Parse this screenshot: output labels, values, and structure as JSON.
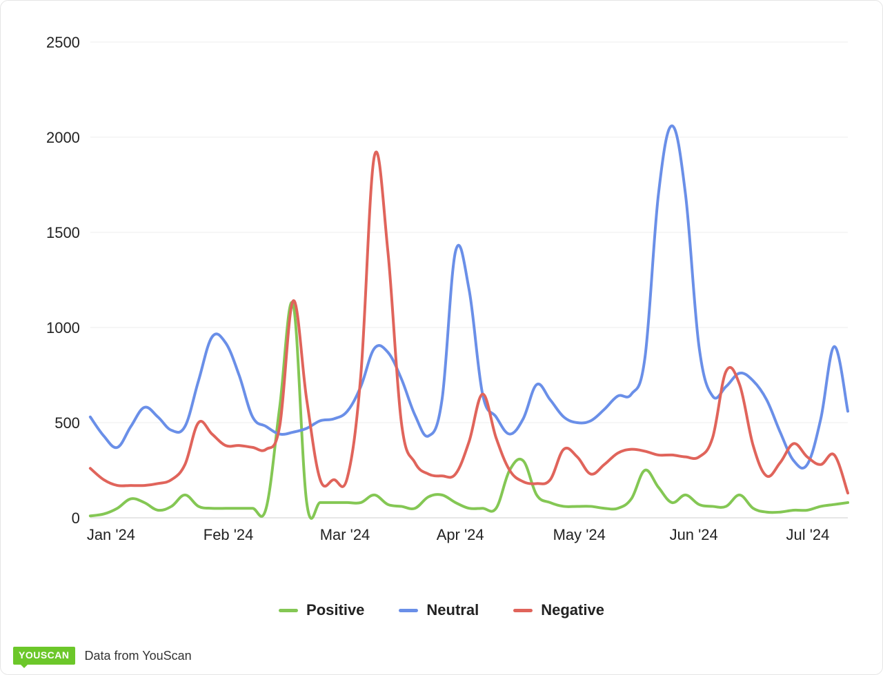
{
  "chart": {
    "type": "line",
    "background_color": "#ffffff",
    "grid_color": "#eeeeee",
    "baseline_color": "#cccccc",
    "line_width": 4,
    "ylim": [
      0,
      2500
    ],
    "ytick_step": 500,
    "yticks": [
      0,
      500,
      1000,
      1500,
      2000,
      2500
    ],
    "xtick_labels": [
      "Jan '24",
      "Feb '24",
      "Mar '24",
      "Apr '24",
      "May '24",
      "Jun '24",
      "Jul '24"
    ],
    "label_fontsize": 22,
    "n_points": 57,
    "series": [
      {
        "name": "Positive",
        "color": "#84c754",
        "values": [
          10,
          20,
          50,
          100,
          80,
          40,
          60,
          120,
          60,
          50,
          50,
          50,
          50,
          50,
          580,
          1120,
          80,
          80,
          80,
          80,
          80,
          120,
          70,
          60,
          50,
          110,
          120,
          80,
          50,
          50,
          50,
          250,
          300,
          120,
          80,
          60,
          60,
          60,
          50,
          50,
          100,
          250,
          160,
          80,
          120,
          70,
          60,
          60,
          120,
          50,
          30,
          30,
          40,
          40,
          60,
          70,
          80
        ]
      },
      {
        "name": "Neutral",
        "color": "#6a8fe8",
        "values": [
          530,
          430,
          370,
          480,
          580,
          530,
          460,
          480,
          720,
          950,
          920,
          750,
          530,
          480,
          440,
          450,
          470,
          510,
          520,
          560,
          690,
          890,
          870,
          730,
          540,
          430,
          620,
          1400,
          1200,
          650,
          530,
          440,
          520,
          700,
          620,
          530,
          500,
          510,
          570,
          640,
          650,
          840,
          1700,
          2060,
          1700,
          900,
          640,
          690,
          760,
          720,
          620,
          450,
          300,
          280,
          520,
          900,
          560
        ]
      },
      {
        "name": "Negative",
        "color": "#e0645b",
        "values": [
          260,
          200,
          170,
          170,
          170,
          180,
          200,
          280,
          500,
          440,
          380,
          380,
          370,
          360,
          480,
          1140,
          620,
          200,
          200,
          210,
          750,
          1900,
          1400,
          500,
          290,
          230,
          220,
          230,
          400,
          650,
          420,
          250,
          190,
          180,
          200,
          360,
          320,
          230,
          280,
          340,
          360,
          350,
          330,
          330,
          320,
          320,
          420,
          770,
          700,
          380,
          220,
          290,
          390,
          320,
          280,
          330,
          130
        ]
      }
    ],
    "legend": {
      "position": "bottom-center",
      "items": [
        "Positive",
        "Neutral",
        "Negative"
      ]
    }
  },
  "footer": {
    "badge_text": "YOUSCAN",
    "text": "Data from YouScan",
    "badge_bg": "#6cc72a",
    "badge_fg": "#ffffff"
  }
}
